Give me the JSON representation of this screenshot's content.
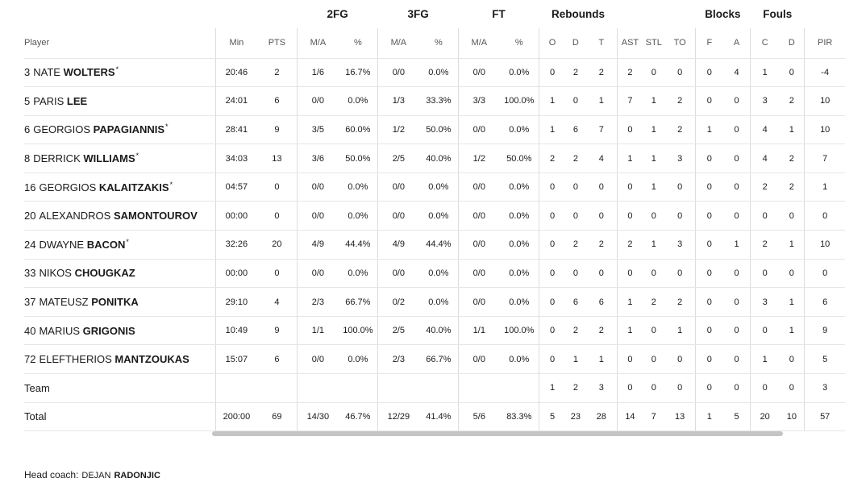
{
  "table": {
    "group_headers": [
      "",
      "",
      "2FG",
      "3FG",
      "FT",
      "Rebounds",
      "",
      "Blocks",
      "Fouls",
      ""
    ],
    "sub_headers": [
      "Player",
      "Min",
      "PTS",
      "M/A",
      "%",
      "M/A",
      "%",
      "M/A",
      "%",
      "O",
      "D",
      "T",
      "AST",
      "STL",
      "TO",
      "F",
      "A",
      "C",
      "D",
      "PIR"
    ],
    "players": [
      {
        "num": "3",
        "first": "NATE",
        "last": "WOLTERS",
        "starter": "*",
        "min": "20:46",
        "pts": "2",
        "fg2": "1/6",
        "fg2p": "16.7%",
        "fg3": "0/0",
        "fg3p": "0.0%",
        "ft": "0/0",
        "ftp": "0.0%",
        "o": "0",
        "d": "2",
        "t": "2",
        "ast": "2",
        "stl": "0",
        "to": "0",
        "bf": "0",
        "ba": "4",
        "fc": "1",
        "fd": "0",
        "pir": "-4"
      },
      {
        "num": "5",
        "first": "PARIS",
        "last": "LEE",
        "starter": "",
        "min": "24:01",
        "pts": "6",
        "fg2": "0/0",
        "fg2p": "0.0%",
        "fg3": "1/3",
        "fg3p": "33.3%",
        "ft": "3/3",
        "ftp": "100.0%",
        "o": "1",
        "d": "0",
        "t": "1",
        "ast": "7",
        "stl": "1",
        "to": "2",
        "bf": "0",
        "ba": "0",
        "fc": "3",
        "fd": "2",
        "pir": "10"
      },
      {
        "num": "6",
        "first": "GEORGIOS",
        "last": "PAPAGIANNIS",
        "starter": "*",
        "min": "28:41",
        "pts": "9",
        "fg2": "3/5",
        "fg2p": "60.0%",
        "fg3": "1/2",
        "fg3p": "50.0%",
        "ft": "0/0",
        "ftp": "0.0%",
        "o": "1",
        "d": "6",
        "t": "7",
        "ast": "0",
        "stl": "1",
        "to": "2",
        "bf": "1",
        "ba": "0",
        "fc": "4",
        "fd": "1",
        "pir": "10"
      },
      {
        "num": "8",
        "first": "DERRICK",
        "last": "WILLIAMS",
        "starter": "*",
        "min": "34:03",
        "pts": "13",
        "fg2": "3/6",
        "fg2p": "50.0%",
        "fg3": "2/5",
        "fg3p": "40.0%",
        "ft": "1/2",
        "ftp": "50.0%",
        "o": "2",
        "d": "2",
        "t": "4",
        "ast": "1",
        "stl": "1",
        "to": "3",
        "bf": "0",
        "ba": "0",
        "fc": "4",
        "fd": "2",
        "pir": "7"
      },
      {
        "num": "16",
        "first": "GEORGIOS",
        "last": "KALAITZAKIS",
        "starter": "*",
        "min": "04:57",
        "pts": "0",
        "fg2": "0/0",
        "fg2p": "0.0%",
        "fg3": "0/0",
        "fg3p": "0.0%",
        "ft": "0/0",
        "ftp": "0.0%",
        "o": "0",
        "d": "0",
        "t": "0",
        "ast": "0",
        "stl": "1",
        "to": "0",
        "bf": "0",
        "ba": "0",
        "fc": "2",
        "fd": "2",
        "pir": "1"
      },
      {
        "num": "20",
        "first": "ALEXANDROS",
        "last": "SAMONTOUROV",
        "starter": "",
        "min": "00:00",
        "pts": "0",
        "fg2": "0/0",
        "fg2p": "0.0%",
        "fg3": "0/0",
        "fg3p": "0.0%",
        "ft": "0/0",
        "ftp": "0.0%",
        "o": "0",
        "d": "0",
        "t": "0",
        "ast": "0",
        "stl": "0",
        "to": "0",
        "bf": "0",
        "ba": "0",
        "fc": "0",
        "fd": "0",
        "pir": "0"
      },
      {
        "num": "24",
        "first": "DWAYNE",
        "last": "BACON",
        "starter": "*",
        "min": "32:26",
        "pts": "20",
        "fg2": "4/9",
        "fg2p": "44.4%",
        "fg3": "4/9",
        "fg3p": "44.4%",
        "ft": "0/0",
        "ftp": "0.0%",
        "o": "0",
        "d": "2",
        "t": "2",
        "ast": "2",
        "stl": "1",
        "to": "3",
        "bf": "0",
        "ba": "1",
        "fc": "2",
        "fd": "1",
        "pir": "10"
      },
      {
        "num": "33",
        "first": "NIKOS",
        "last": "CHOUGKAZ",
        "starter": "",
        "min": "00:00",
        "pts": "0",
        "fg2": "0/0",
        "fg2p": "0.0%",
        "fg3": "0/0",
        "fg3p": "0.0%",
        "ft": "0/0",
        "ftp": "0.0%",
        "o": "0",
        "d": "0",
        "t": "0",
        "ast": "0",
        "stl": "0",
        "to": "0",
        "bf": "0",
        "ba": "0",
        "fc": "0",
        "fd": "0",
        "pir": "0"
      },
      {
        "num": "37",
        "first": "MATEUSZ",
        "last": "PONITKA",
        "starter": "",
        "min": "29:10",
        "pts": "4",
        "fg2": "2/3",
        "fg2p": "66.7%",
        "fg3": "0/2",
        "fg3p": "0.0%",
        "ft": "0/0",
        "ftp": "0.0%",
        "o": "0",
        "d": "6",
        "t": "6",
        "ast": "1",
        "stl": "2",
        "to": "2",
        "bf": "0",
        "ba": "0",
        "fc": "3",
        "fd": "1",
        "pir": "6"
      },
      {
        "num": "40",
        "first": "MARIUS",
        "last": "GRIGONIS",
        "starter": "",
        "min": "10:49",
        "pts": "9",
        "fg2": "1/1",
        "fg2p": "100.0%",
        "fg3": "2/5",
        "fg3p": "40.0%",
        "ft": "1/1",
        "ftp": "100.0%",
        "o": "0",
        "d": "2",
        "t": "2",
        "ast": "1",
        "stl": "0",
        "to": "1",
        "bf": "0",
        "ba": "0",
        "fc": "0",
        "fd": "1",
        "pir": "9"
      },
      {
        "num": "72",
        "first": "ELEFTHERIOS",
        "last": "MANTZOUKAS",
        "starter": "",
        "min": "15:07",
        "pts": "6",
        "fg2": "0/0",
        "fg2p": "0.0%",
        "fg3": "2/3",
        "fg3p": "66.7%",
        "ft": "0/0",
        "ftp": "0.0%",
        "o": "0",
        "d": "1",
        "t": "1",
        "ast": "0",
        "stl": "0",
        "to": "0",
        "bf": "0",
        "ba": "0",
        "fc": "1",
        "fd": "0",
        "pir": "5"
      }
    ],
    "team": {
      "label": "Team",
      "min": "",
      "pts": "",
      "fg2": "",
      "fg2p": "",
      "fg3": "",
      "fg3p": "",
      "ft": "",
      "ftp": "",
      "o": "1",
      "d": "2",
      "t": "3",
      "ast": "0",
      "stl": "0",
      "to": "0",
      "bf": "0",
      "ba": "0",
      "fc": "0",
      "fd": "0",
      "pir": "3"
    },
    "total": {
      "label": "Total",
      "min": "200:00",
      "pts": "69",
      "fg2": "14/30",
      "fg2p": "46.7%",
      "fg3": "12/29",
      "fg3p": "41.4%",
      "ft": "5/6",
      "ftp": "83.3%",
      "o": "5",
      "d": "23",
      "t": "28",
      "ast": "14",
      "stl": "7",
      "to": "13",
      "bf": "1",
      "ba": "5",
      "fc": "20",
      "fd": "10",
      "pir": "57"
    }
  },
  "coach": {
    "label": "Head coach:",
    "first": "DEJAN",
    "last": "RADONJIC"
  }
}
